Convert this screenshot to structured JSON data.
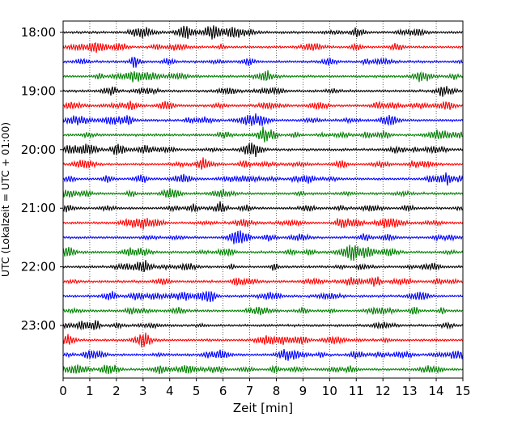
{
  "chart_data": {
    "type": "line",
    "title": "",
    "xlabel": "Zeit  [min]",
    "ylabel": "UTC (Lokalzeit = UTC + 01:00)",
    "xlim": [
      0,
      15
    ],
    "x_ticks": [
      "0",
      "1",
      "2",
      "3",
      "4",
      "5",
      "6",
      "7",
      "8",
      "9",
      "10",
      "11",
      "12",
      "13",
      "14",
      "15"
    ],
    "y_ticks": [
      "18:00",
      "19:00",
      "20:00",
      "21:00",
      "22:00",
      "23:00"
    ],
    "traces_per_hour": 4,
    "minutes_per_trace": 15,
    "grid": "vertical dotted lines at each minute",
    "series": [
      {
        "start": "18:00",
        "color": "#000000"
      },
      {
        "start": "18:15",
        "color": "#ff0000"
      },
      {
        "start": "18:30",
        "color": "#0000ff"
      },
      {
        "start": "18:45",
        "color": "#008000"
      },
      {
        "start": "19:00",
        "color": "#000000"
      },
      {
        "start": "19:15",
        "color": "#ff0000"
      },
      {
        "start": "19:30",
        "color": "#0000ff"
      },
      {
        "start": "19:45",
        "color": "#008000"
      },
      {
        "start": "20:00",
        "color": "#000000"
      },
      {
        "start": "20:15",
        "color": "#ff0000"
      },
      {
        "start": "20:30",
        "color": "#0000ff"
      },
      {
        "start": "20:45",
        "color": "#008000"
      },
      {
        "start": "21:00",
        "color": "#000000"
      },
      {
        "start": "21:15",
        "color": "#ff0000"
      },
      {
        "start": "21:30",
        "color": "#0000ff"
      },
      {
        "start": "21:45",
        "color": "#008000"
      },
      {
        "start": "22:00",
        "color": "#000000"
      },
      {
        "start": "22:15",
        "color": "#ff0000"
      },
      {
        "start": "22:30",
        "color": "#0000ff"
      },
      {
        "start": "22:45",
        "color": "#008000"
      },
      {
        "start": "23:00",
        "color": "#000000"
      },
      {
        "start": "23:15",
        "color": "#ff0000"
      },
      {
        "start": "23:30",
        "color": "#0000ff"
      },
      {
        "start": "23:45",
        "color": "#008000"
      }
    ]
  }
}
